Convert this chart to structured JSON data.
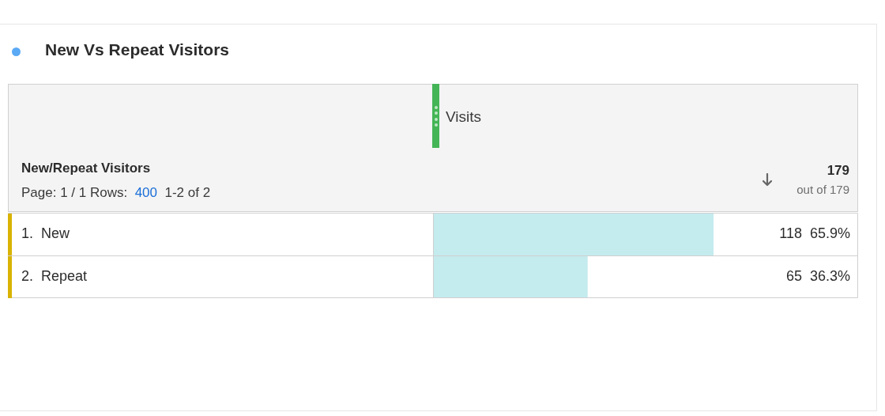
{
  "chart_data": {
    "type": "bar",
    "orientation": "horizontal",
    "title": "New Vs Repeat Visitors",
    "ylabel": "New/Repeat Visitors",
    "categories": [
      "1.  New",
      "2.  Repeat"
    ],
    "values": [
      118,
      65
    ],
    "color": "#c4ebee",
    "value_labels": [
      "118  65.9%",
      "65  36.3%"
    ],
    "xlim": [
      0,
      179
    ],
    "annotations": [
      "Visits",
      "Page: 1 / 1 Rows:",
      "400",
      "1-2 of 2",
      "179",
      "out of 179"
    ]
  }
}
